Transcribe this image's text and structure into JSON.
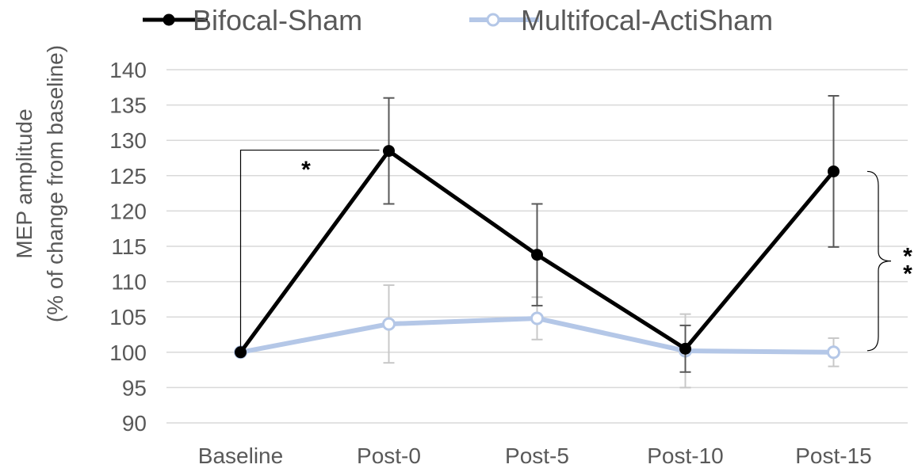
{
  "chart_data": {
    "type": "line",
    "categories": [
      "Baseline",
      "Post-0",
      "Post-5",
      "Post-10",
      "Post-15"
    ],
    "ylabel_lines": [
      "MEP amplitude",
      "(% of change  from baseline)"
    ],
    "xlabel": "",
    "ylim": [
      90,
      140
    ],
    "yticks": [
      90,
      95,
      100,
      105,
      110,
      115,
      120,
      125,
      130,
      135,
      140
    ],
    "grid": "horizontal",
    "legend_position": "top",
    "series": [
      {
        "name": "Bifocal-Sham",
        "color": "#000000",
        "marker": "filled-circle",
        "values": [
          100,
          128.5,
          113.8,
          100.5,
          125.6
        ],
        "error": [
          0,
          7.5,
          7.2,
          3.3,
          10.7
        ]
      },
      {
        "name": "Multifocal-ActiSham",
        "color": "#b4c7e7",
        "marker": "open-circle",
        "values": [
          100,
          104,
          104.8,
          100.2,
          100
        ],
        "error": [
          0,
          5.5,
          3.0,
          5.2,
          2.0
        ]
      }
    ],
    "annotations": [
      {
        "text": "*",
        "type": "bracket-baseline-post0"
      },
      {
        "text": "*",
        "type": "brace-post15"
      },
      {
        "text": "*",
        "type": "brace-post15"
      }
    ]
  }
}
